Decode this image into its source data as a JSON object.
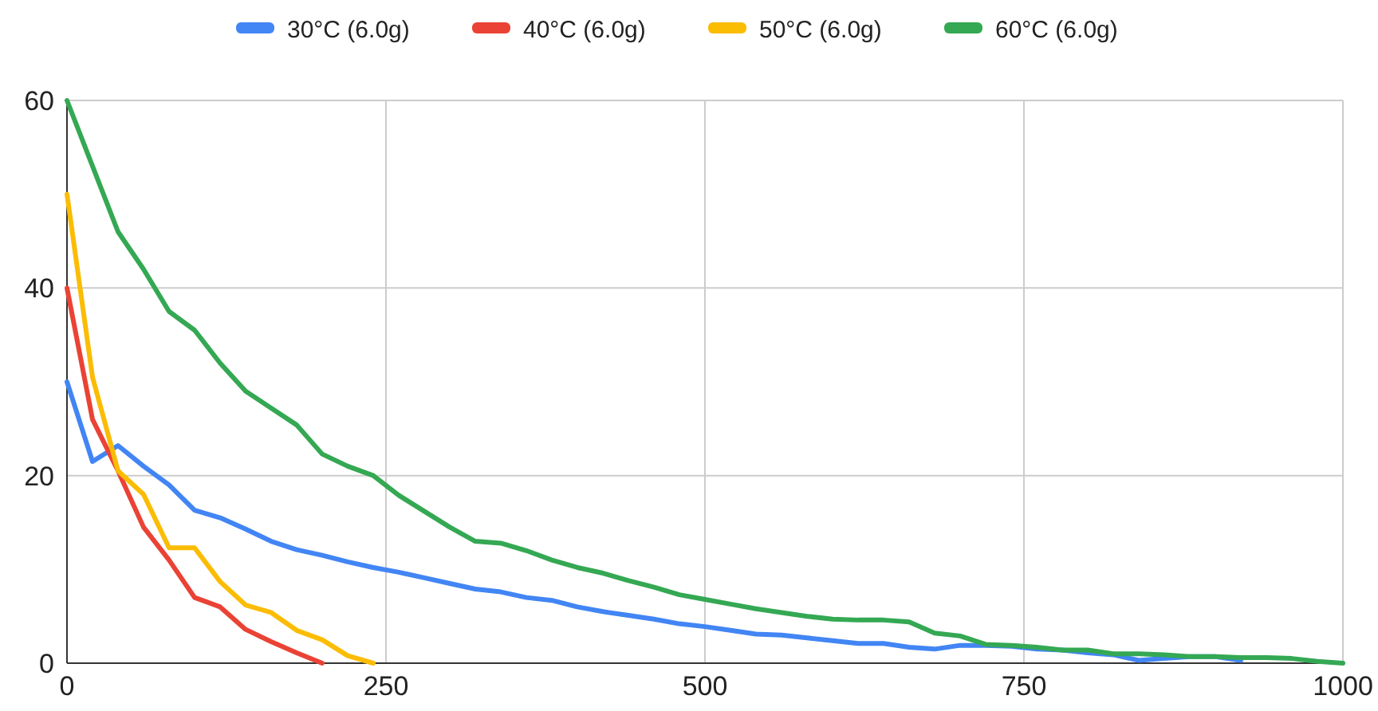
{
  "chart_data": {
    "type": "line",
    "legend": "top",
    "grid": true,
    "xlim": [
      0,
      1000
    ],
    "ylim": [
      0,
      60
    ],
    "xticks": [
      0,
      250,
      500,
      750,
      1000
    ],
    "yticks": [
      0,
      20,
      40,
      60
    ],
    "marker": "none",
    "line_style": "solid",
    "series": [
      {
        "name": "30°C (6.0g)",
        "color": "#4285f4",
        "x": [
          0,
          20,
          40,
          60,
          80,
          100,
          120,
          140,
          160,
          180,
          200,
          220,
          240,
          260,
          280,
          300,
          320,
          340,
          360,
          380,
          400,
          420,
          440,
          460,
          480,
          500,
          520,
          540,
          560,
          580,
          600,
          620,
          640,
          660,
          680,
          700,
          720,
          740,
          760,
          780,
          800,
          820,
          840,
          860,
          880,
          900,
          920
        ],
        "values": [
          30,
          21.5,
          23.2,
          21,
          19,
          16.3,
          15.5,
          14.3,
          13,
          12.1,
          11.5,
          10.8,
          10.2,
          9.7,
          9.1,
          8.5,
          7.9,
          7.6,
          7,
          6.7,
          6,
          5.5,
          5.1,
          4.7,
          4.2,
          3.9,
          3.5,
          3.1,
          3,
          2.7,
          2.4,
          2.1,
          2.1,
          1.7,
          1.5,
          1.9,
          1.9,
          1.8,
          1.5,
          1.4,
          1.1,
          0.9,
          0.3,
          0.5,
          0.7,
          0.7,
          0.3
        ]
      },
      {
        "name": "40°C (6.0g)",
        "color": "#ea4335",
        "x": [
          0,
          20,
          40,
          60,
          80,
          100,
          120,
          140,
          160,
          180,
          200
        ],
        "values": [
          40,
          26,
          20.5,
          14.5,
          11,
          7,
          6,
          3.6,
          2.3,
          1.1,
          0
        ]
      },
      {
        "name": "50°C (6.0g)",
        "color": "#fbbc04",
        "x": [
          0,
          20,
          40,
          60,
          80,
          100,
          120,
          140,
          160,
          180,
          200,
          220,
          240
        ],
        "values": [
          50,
          30.5,
          20.5,
          18,
          12.3,
          12.3,
          8.7,
          6.2,
          5.4,
          3.5,
          2.5,
          0.8,
          0
        ]
      },
      {
        "name": "60°C (6.0g)",
        "color": "#34a853",
        "x": [
          0,
          20,
          40,
          60,
          80,
          100,
          120,
          140,
          160,
          180,
          200,
          220,
          240,
          260,
          280,
          300,
          320,
          340,
          360,
          380,
          400,
          420,
          440,
          460,
          480,
          500,
          520,
          540,
          560,
          580,
          600,
          620,
          640,
          660,
          680,
          700,
          720,
          740,
          760,
          780,
          800,
          820,
          840,
          860,
          880,
          900,
          920,
          940,
          960,
          980,
          1000
        ],
        "values": [
          60,
          53,
          46,
          42,
          37.5,
          35.5,
          32,
          29,
          27.2,
          25.4,
          22.3,
          21,
          20,
          17.9,
          16.2,
          14.5,
          13,
          12.8,
          12,
          11,
          10.2,
          9.6,
          8.8,
          8.1,
          7.3,
          6.8,
          6.3,
          5.8,
          5.4,
          5,
          4.7,
          4.6,
          4.6,
          4.4,
          3.2,
          2.9,
          2,
          1.9,
          1.7,
          1.4,
          1.4,
          1,
          1,
          0.9,
          0.7,
          0.7,
          0.6,
          0.6,
          0.5,
          0.2,
          0
        ]
      }
    ]
  }
}
